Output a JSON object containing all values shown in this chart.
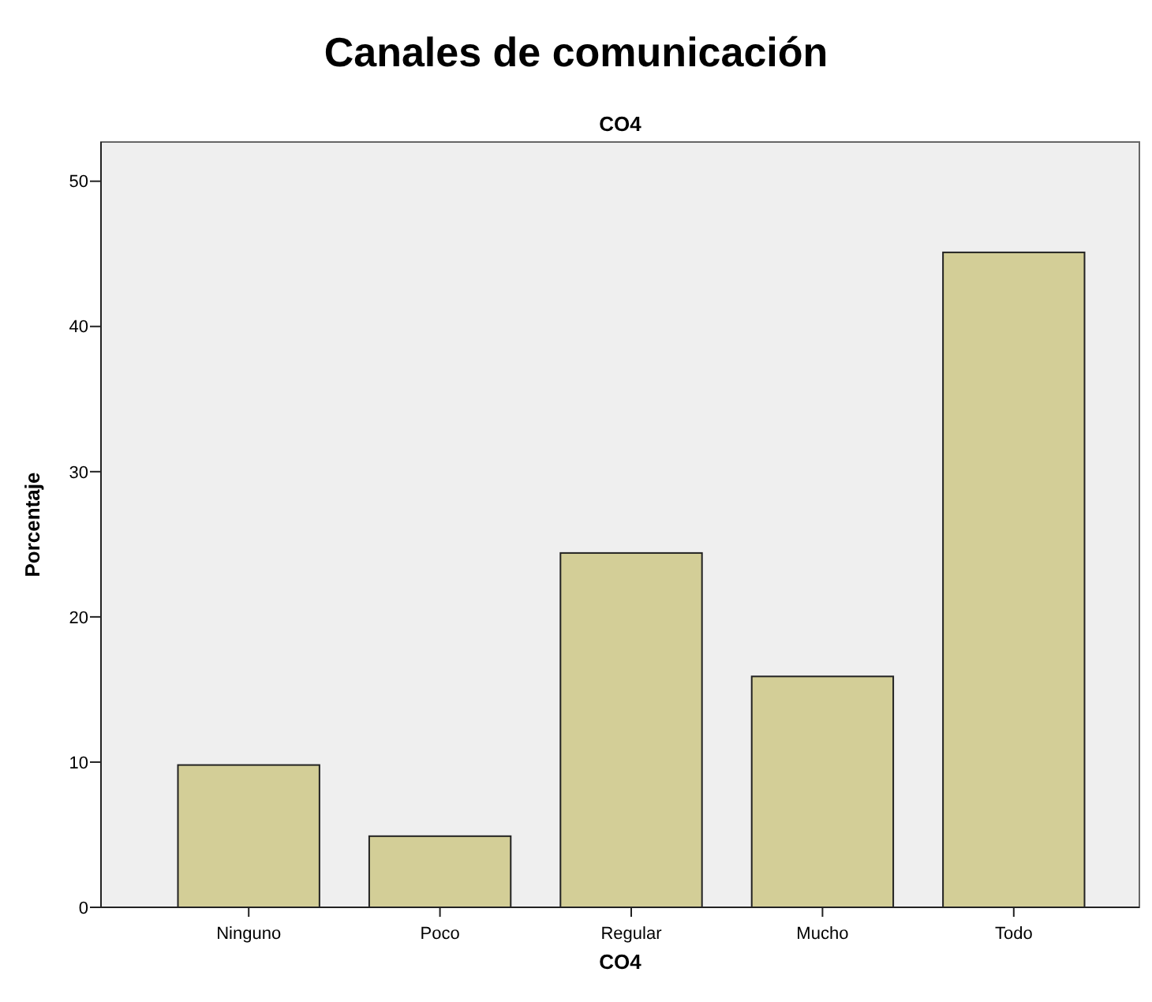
{
  "chart_data": {
    "type": "bar",
    "title": "Canales de comunicación",
    "subtitle": "CO4",
    "xlabel": "CO4",
    "ylabel": "Porcentaje",
    "categories": [
      "Ninguno",
      "Poco",
      "Regular",
      "Mucho",
      "Todo"
    ],
    "values": [
      9.8,
      4.9,
      24.4,
      15.9,
      45.1
    ],
    "color": "#d3ce97",
    "ylim": [
      0,
      52.7
    ],
    "yticks": [
      0,
      10,
      20,
      30,
      40,
      50
    ],
    "grid": false
  }
}
